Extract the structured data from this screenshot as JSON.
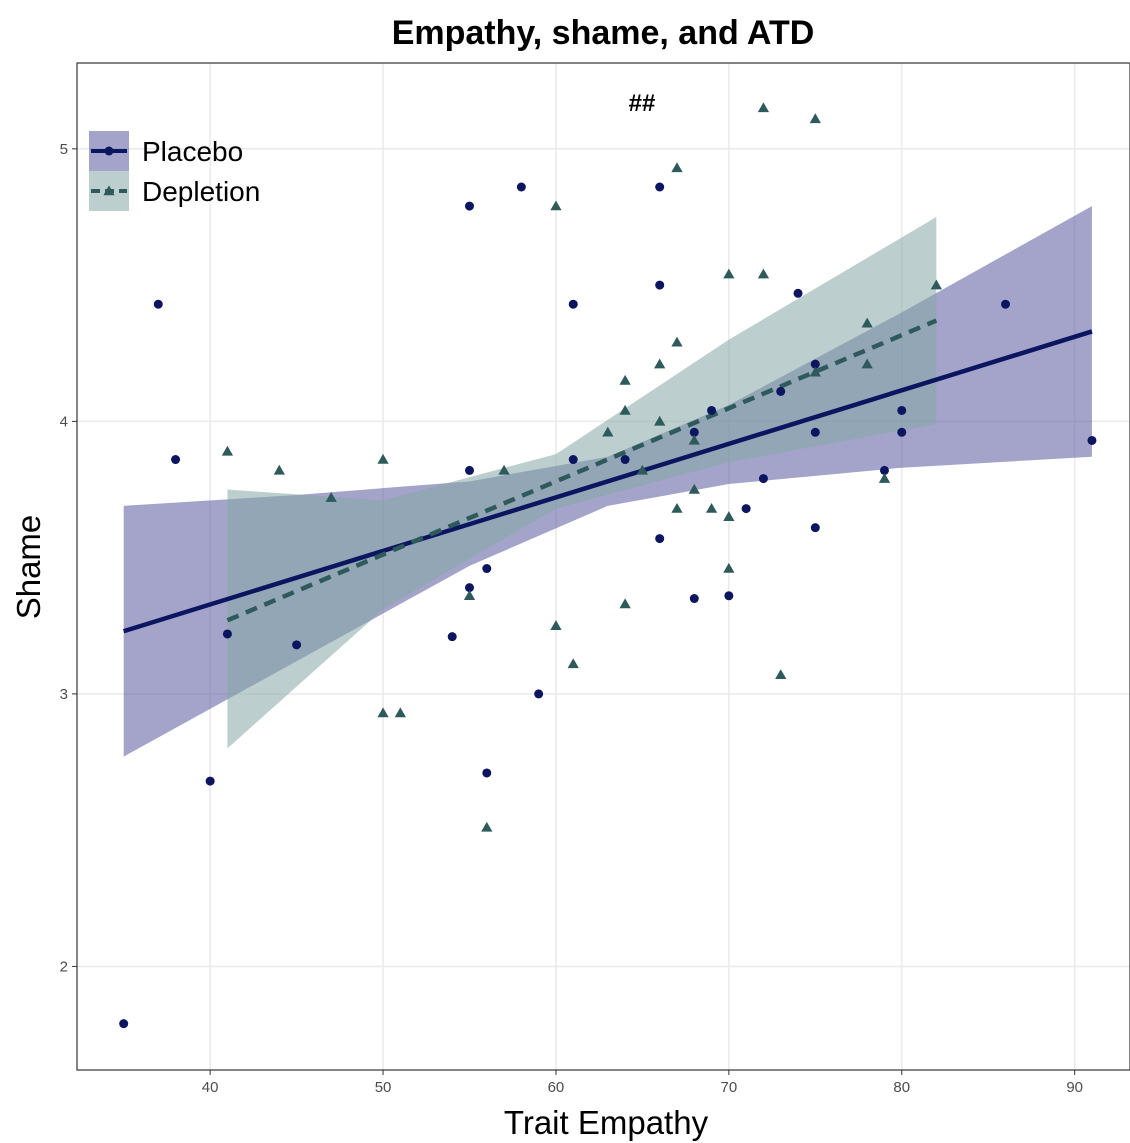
{
  "chart_data": {
    "type": "scatter",
    "title": "Empathy, shame, and ATD",
    "x_label": "Trait Empathy",
    "y_label": "Shame",
    "annotation": "##",
    "xlim": [
      32.3,
      93.2
    ],
    "ylim": [
      1.62,
      5.315
    ],
    "xticks": [
      40,
      50,
      60,
      70,
      80,
      90
    ],
    "yticks": [
      2,
      3,
      4,
      5
    ],
    "grid": true,
    "legend": "top-left",
    "series": [
      {
        "name": "Placebo",
        "color": "#0c1660",
        "band_color": "#5a5a9e",
        "marker": "circle",
        "line_style": "solid",
        "x": [
          35,
          37,
          38,
          40,
          41,
          45,
          54,
          55,
          55,
          55,
          56,
          56,
          58,
          59,
          61,
          61,
          64,
          66,
          66,
          66,
          68,
          68,
          69,
          70,
          71,
          72,
          73,
          74,
          75,
          75,
          75,
          79,
          80,
          80,
          86,
          91
        ],
        "values": [
          1.79,
          4.43,
          3.86,
          2.68,
          3.22,
          3.18,
          3.21,
          4.79,
          3.82,
          3.39,
          3.46,
          2.71,
          4.86,
          3.0,
          4.43,
          3.86,
          3.86,
          4.86,
          4.5,
          3.57,
          3.96,
          3.35,
          4.04,
          3.36,
          3.68,
          3.79,
          4.11,
          4.47,
          4.21,
          3.96,
          3.61,
          3.82,
          4.04,
          3.96,
          4.43,
          3.93
        ],
        "fit": {
          "x": [
            35,
            91
          ],
          "values": [
            3.23,
            4.33
          ]
        },
        "band": {
          "x": [
            35,
            45,
            55,
            63,
            70,
            80,
            91
          ],
          "lower": [
            2.77,
            3.12,
            3.47,
            3.69,
            3.77,
            3.83,
            3.87
          ],
          "upper": [
            3.69,
            3.73,
            3.78,
            3.87,
            4.06,
            4.4,
            4.79
          ]
        }
      },
      {
        "name": "Depletion",
        "color": "#2e5a5c",
        "band_color": "#85a8a6",
        "marker": "triangle",
        "line_style": "dashed",
        "x": [
          41,
          44,
          47,
          50,
          50,
          51,
          55,
          56,
          57,
          60,
          60,
          61,
          63,
          64,
          64,
          64,
          65,
          66,
          66,
          67,
          67,
          67,
          68,
          68,
          69,
          70,
          70,
          70,
          72,
          72,
          73,
          75,
          75,
          78,
          78,
          79,
          82
        ],
        "values": [
          3.89,
          3.82,
          3.72,
          3.86,
          2.93,
          2.93,
          3.36,
          2.51,
          3.82,
          4.79,
          3.25,
          3.11,
          3.96,
          4.15,
          4.04,
          3.33,
          3.82,
          4.21,
          4.0,
          4.93,
          4.29,
          3.68,
          3.75,
          3.93,
          3.68,
          4.54,
          3.65,
          3.46,
          5.15,
          4.54,
          3.07,
          5.11,
          4.18,
          4.36,
          4.21,
          3.79,
          4.5
        ],
        "fit": {
          "x": [
            41,
            82
          ],
          "values": [
            3.27,
            4.37
          ]
        },
        "band": {
          "x": [
            41,
            50,
            60,
            70,
            82
          ],
          "lower": [
            2.8,
            3.31,
            3.68,
            3.85,
            3.99
          ],
          "upper": [
            3.75,
            3.71,
            3.88,
            4.3,
            4.75
          ]
        }
      }
    ]
  }
}
